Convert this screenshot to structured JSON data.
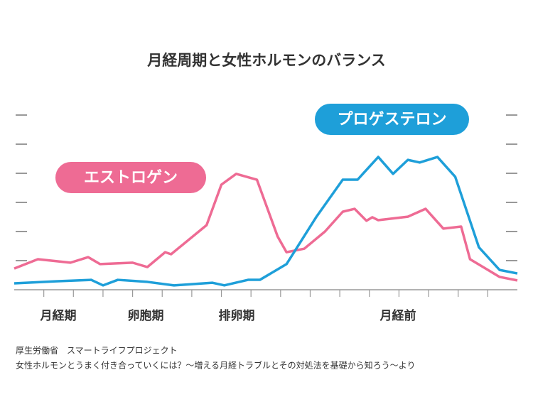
{
  "chart_data": {
    "type": "line",
    "title": "月経周期と女性ホルモンのバランス",
    "series": [
      {
        "name": "エストロゲン",
        "color": "#ee6b94",
        "x": [
          0,
          0.8,
          1.9,
          2.5,
          2.9,
          4.0,
          4.5,
          5.1,
          5.3,
          6.5,
          7.0,
          7.5,
          8.2,
          8.9,
          9.2,
          9.8,
          10.5,
          11.1,
          11.5,
          11.9,
          12.1,
          12.3,
          13.3,
          13.9,
          14.5,
          15.1,
          15.4,
          16.4,
          17
        ],
        "values": [
          0.73,
          1.05,
          0.93,
          1.12,
          0.88,
          0.93,
          0.78,
          1.29,
          1.22,
          2.22,
          3.61,
          3.98,
          3.78,
          1.83,
          1.29,
          1.41,
          2.0,
          2.68,
          2.78,
          2.37,
          2.49,
          2.39,
          2.51,
          2.78,
          2.1,
          2.17,
          1.05,
          0.44,
          0.32
        ]
      },
      {
        "name": "プロゲステロン",
        "color": "#1e9fd9",
        "x": [
          0,
          1.4,
          2.6,
          3.0,
          3.5,
          4.5,
          5.4,
          6.7,
          7.1,
          7.9,
          8.3,
          9.2,
          10.2,
          11.1,
          11.6,
          12.3,
          12.8,
          13.3,
          13.7,
          14.3,
          14.9,
          15.7,
          16.4,
          17
        ],
        "values": [
          0.22,
          0.29,
          0.34,
          0.15,
          0.34,
          0.27,
          0.15,
          0.24,
          0.15,
          0.34,
          0.34,
          0.88,
          2.49,
          3.78,
          3.78,
          4.56,
          3.98,
          4.46,
          4.37,
          4.56,
          3.88,
          1.46,
          0.68,
          0.56
        ]
      }
    ],
    "xlim": [
      0,
      17
    ],
    "xticks": [
      1,
      2,
      3,
      4,
      5,
      6,
      7,
      8,
      9,
      10,
      11,
      12,
      13,
      14,
      15,
      16
    ],
    "ylim": [
      0,
      6
    ],
    "yticks": [
      1,
      2,
      3,
      4,
      5,
      6
    ],
    "phase_labels": [
      "月経期",
      "卵胞期",
      "排卵期",
      "月経前"
    ],
    "source": [
      "厚生労働省　スマートライフプロジェクト",
      "女性ホルモンとうまく付き合っていくには？～増える月経トラブルとその対処法を基礎から知ろう～より"
    ]
  }
}
